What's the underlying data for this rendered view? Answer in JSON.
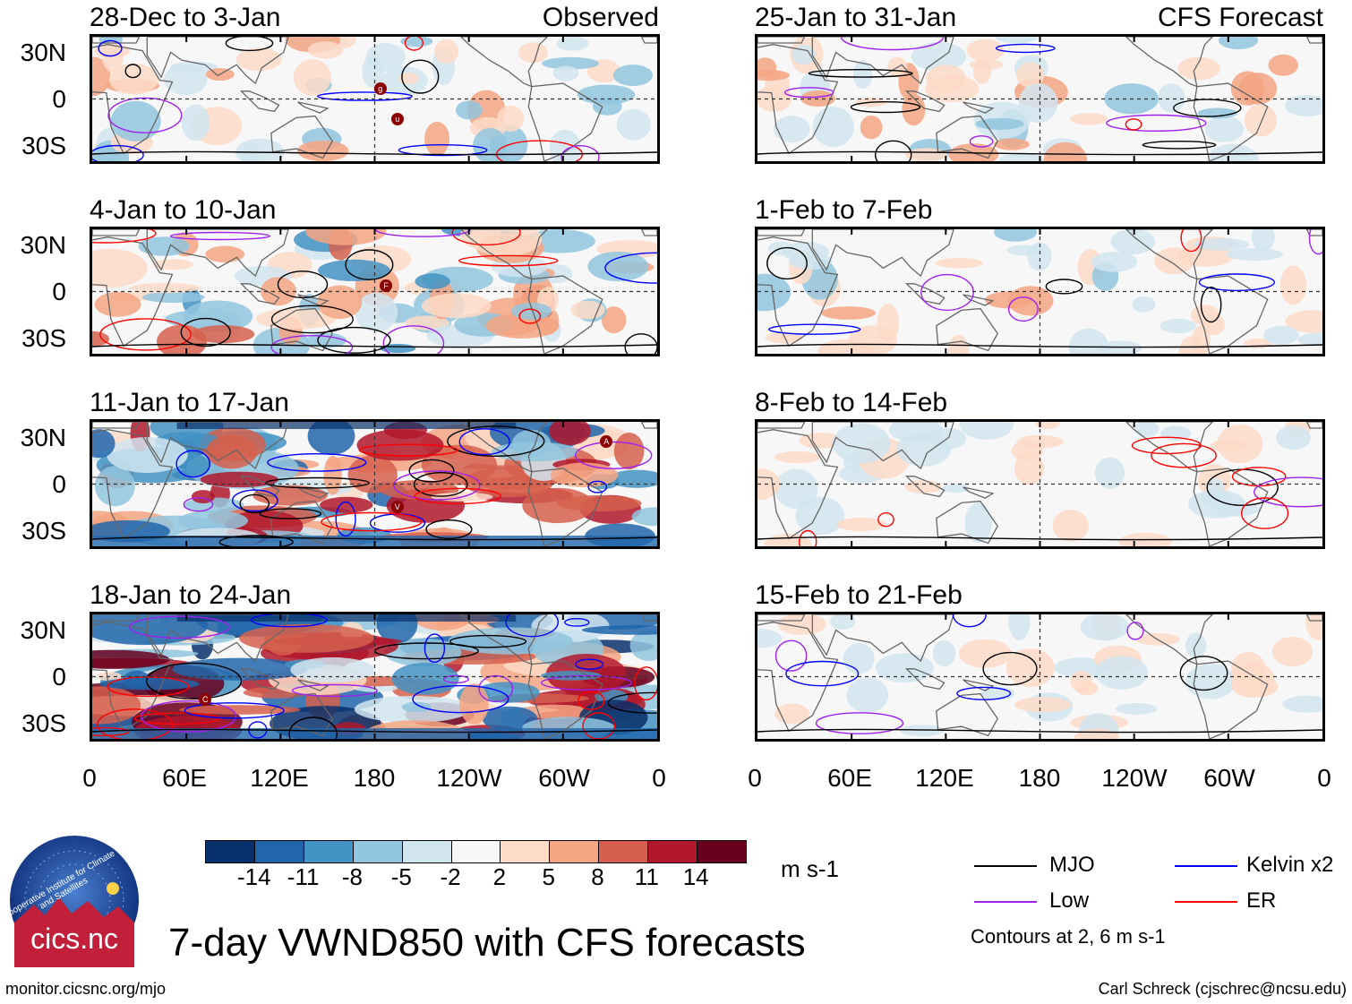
{
  "observed_label": "Observed",
  "forecast_label": "CFS Forecast",
  "lat_labels": [
    "30N",
    "0",
    "30S"
  ],
  "lon_labels": [
    "0",
    "60E",
    "120E",
    "180",
    "120W",
    "60W",
    "0"
  ],
  "panels_left": [
    {
      "title": "28-Dec to 3-Jan",
      "intensity": 1,
      "storms": [
        "g",
        "u"
      ]
    },
    {
      "title": "4-Jan to 10-Jan",
      "intensity": 2,
      "storms": [
        "F"
      ]
    },
    {
      "title": "11-Jan to 17-Jan",
      "intensity": 3,
      "storms": [
        "A",
        "V"
      ]
    },
    {
      "title": "18-Jan to 24-Jan",
      "intensity": 4,
      "storms": [
        "C"
      ]
    }
  ],
  "panels_right": [
    {
      "title": "25-Jan to 31-Jan",
      "intensity": 1
    },
    {
      "title": "1-Feb to 7-Feb",
      "intensity": 0.6
    },
    {
      "title": "8-Feb to 14-Feb",
      "intensity": 0.3
    },
    {
      "title": "15-Feb to 21-Feb",
      "intensity": 0.3
    }
  ],
  "colorbar": {
    "labels": [
      "-14",
      "-11",
      "-8",
      "-5",
      "-2",
      "2",
      "5",
      "8",
      "11",
      "14"
    ],
    "units": "m s-1",
    "colors": [
      "#08306b",
      "#2166ac",
      "#4393c3",
      "#92c5de",
      "#d1e5f0",
      "#f7f7f7",
      "#fddbc7",
      "#f4a582",
      "#d6604d",
      "#b2182b",
      "#67001f"
    ]
  },
  "legend": {
    "items": [
      {
        "label": "MJO",
        "color": "#000000"
      },
      {
        "label": "Kelvin x2",
        "color": "#0000ff"
      },
      {
        "label": "Low",
        "color": "#a020f0"
      },
      {
        "label": "ER",
        "color": "#ff0000"
      }
    ],
    "note": "Contours at 2, 6 m s-1"
  },
  "logo_text": "cics.nc",
  "logo_ring_text": "Cooperative Institute for Climate and Satellites",
  "main_title": "7-day VWND850 with CFS forecasts",
  "footer_left": "monitor.cicsnc.org/mjo",
  "footer_right": "Carl Schreck (cjschrec@ncsu.edu)"
}
